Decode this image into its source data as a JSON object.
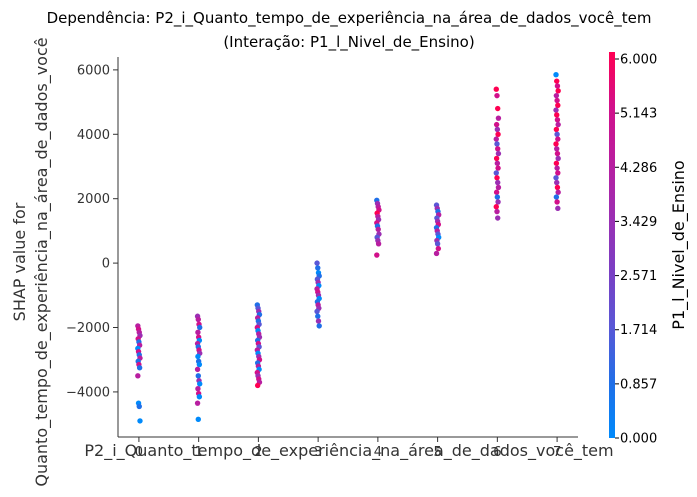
{
  "chart_data": {
    "type": "scatter",
    "title": "Dependência: P2_i_Quanto_tempo_de_experiência_na_área_de_dados_você_tem",
    "subtitle": "(Interação: P1_l_Nivel_de_Ensino)",
    "xlabel": "P2_i_Quanto_tempo_de_experiência_na_área_de_dados_você_tem",
    "ylabel_line1": "SHAP value for",
    "ylabel_line2": "Quanto_tempo_de_experiência_na_área_de_dados_você",
    "xlim": [
      -0.35,
      7.35
    ],
    "ylim": [
      -5400,
      6400
    ],
    "x_ticks": [
      0,
      1,
      2,
      3,
      4,
      5,
      6,
      7
    ],
    "x_tick_labels": [
      "0",
      "1",
      "2",
      "3",
      "4",
      "5",
      "6",
      "7"
    ],
    "y_ticks": [
      -4000,
      -2000,
      0,
      2000,
      4000,
      6000
    ],
    "y_tick_labels": [
      "−4000",
      "−2000",
      "0",
      "2000",
      "4000",
      "6000"
    ],
    "colorbar": {
      "label": "P1_l_Nivel_de_Ensino",
      "range": [
        0,
        6
      ],
      "tick_values": [
        0,
        0.857,
        1.714,
        2.571,
        3.429,
        4.286,
        5.143,
        6.0
      ],
      "tick_labels": [
        "0.000",
        "0.857",
        "1.714",
        "2.571",
        "3.429",
        "4.286",
        "5.143",
        "6.000"
      ],
      "colors": [
        "#008afb",
        "#1f6fe8",
        "#5a57d6",
        "#7a3fc4",
        "#9b2fb3",
        "#b81ea0",
        "#d2108a",
        "#ff0052"
      ]
    },
    "groups": [
      {
        "x": 0,
        "y": [
          -1950,
          -2050,
          -2150,
          -2250,
          -2350,
          -2450,
          -2550,
          -2650,
          -2750,
          -2850,
          -2950,
          -3050,
          -3150,
          -3250,
          -3500,
          -4350,
          -4450,
          -4900
        ],
        "c": [
          4,
          5,
          4,
          3,
          5,
          1,
          4,
          0,
          5,
          1,
          4,
          1,
          5,
          1,
          4,
          0,
          1,
          0
        ]
      },
      {
        "x": 1,
        "y": [
          -1650,
          -1750,
          -1900,
          -2000,
          -2150,
          -2300,
          -2400,
          -2500,
          -2600,
          -2700,
          -2800,
          -2900,
          -3050,
          -3150,
          -3300,
          -3500,
          -3650,
          -3750,
          -3900,
          -4050,
          -4150,
          -4350,
          -4850
        ],
        "c": [
          3,
          4,
          5,
          1,
          4,
          5,
          0,
          4,
          1,
          5,
          3,
          0,
          1,
          0,
          4,
          1,
          3,
          0,
          4,
          5,
          0,
          4,
          0
        ]
      },
      {
        "x": 2,
        "y": [
          -1300,
          -1400,
          -1500,
          -1600,
          -1700,
          -1800,
          -1900,
          -2000,
          -2100,
          -2200,
          -2300,
          -2400,
          -2500,
          -2600,
          -2700,
          -2800,
          -2900,
          -3000,
          -3100,
          -3200,
          -3300,
          -3400,
          -3500,
          -3600,
          -3700,
          -3800
        ],
        "c": [
          1,
          2,
          3,
          1,
          4,
          1,
          2,
          5,
          0,
          4,
          3,
          1,
          5,
          2,
          4,
          0,
          3,
          5,
          1,
          4,
          0,
          5,
          3,
          5,
          4,
          6
        ]
      },
      {
        "x": 3,
        "y": [
          0,
          -150,
          -300,
          -400,
          -500,
          -600,
          -700,
          -800,
          -900,
          -1000,
          -1100,
          -1200,
          -1300,
          -1400,
          -1500,
          -1650,
          -1800,
          -1950
        ],
        "c": [
          2,
          1,
          0,
          1,
          2,
          3,
          0,
          4,
          5,
          3,
          0,
          1,
          4,
          3,
          2,
          1,
          3,
          1
        ]
      },
      {
        "x": 4,
        "y": [
          1950,
          1850,
          1750,
          1650,
          1550,
          1450,
          1350,
          1250,
          1150,
          1050,
          900,
          800,
          700,
          600,
          250
        ],
        "c": [
          1,
          3,
          4,
          5,
          6,
          4,
          3,
          5,
          1,
          4,
          3,
          2,
          3,
          4,
          5
        ]
      },
      {
        "x": 5,
        "y": [
          1800,
          1700,
          1600,
          1500,
          1400,
          1300,
          1200,
          1100,
          1000,
          900,
          800,
          700,
          600,
          450,
          300
        ],
        "c": [
          2,
          3,
          1,
          4,
          2,
          3,
          5,
          1,
          4,
          2,
          0,
          3,
          2,
          5,
          4
        ]
      },
      {
        "x": 6,
        "y": [
          5400,
          5200,
          4800,
          4500,
          4300,
          4150,
          4000,
          3850,
          3700,
          3550,
          3400,
          3250,
          3100,
          2950,
          2800,
          2650,
          2500,
          2350,
          2200,
          2050,
          1900,
          1750,
          1600,
          1400
        ],
        "c": [
          6,
          5,
          6,
          4,
          5,
          3,
          6,
          4,
          2,
          5,
          3,
          6,
          4,
          5,
          2,
          6,
          3,
          4,
          5,
          1,
          3,
          6,
          4,
          3
        ]
      },
      {
        "x": 7,
        "y": [
          5850,
          5650,
          5500,
          5350,
          5200,
          5050,
          4900,
          4750,
          4600,
          4450,
          4300,
          4150,
          4000,
          3850,
          3700,
          3550,
          3400,
          3250,
          3100,
          2950,
          2800,
          2650,
          2500,
          2350,
          2200,
          2050,
          1900,
          1700
        ],
        "c": [
          0,
          6,
          5,
          6,
          4,
          5,
          6,
          3,
          6,
          5,
          4,
          6,
          2,
          5,
          6,
          4,
          5,
          3,
          6,
          4,
          5,
          2,
          3,
          6,
          4,
          1,
          5,
          3
        ]
      }
    ]
  }
}
